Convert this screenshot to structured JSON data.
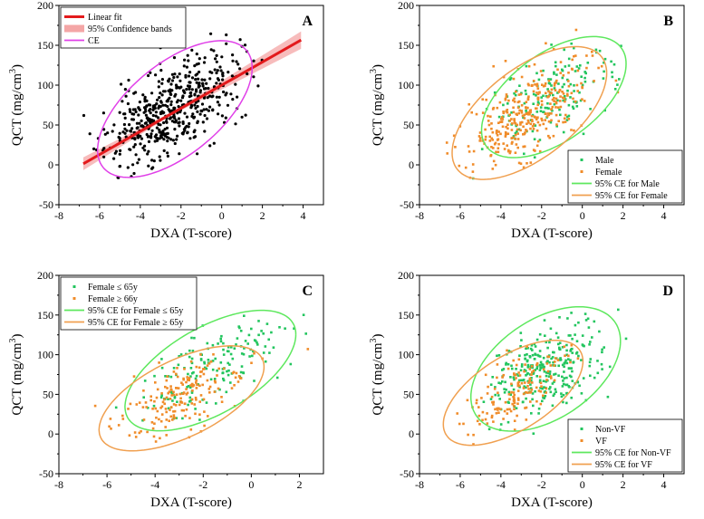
{
  "colors": {
    "black": "#000000",
    "red": "#e31a1c",
    "band": "#f4a6a6",
    "magenta": "#e040e8",
    "green": "#22c55e",
    "orange": "#f08c2a",
    "ellipse_green": "#5ee85e",
    "ellipse_orange": "#f0a050"
  },
  "chart_data": [
    {
      "panel": "A",
      "type": "scatter",
      "xlabel": "DXA (T-score)",
      "ylabel": "QCT (mg/cm",
      "ylabel_sup": "3",
      "ylabel_end": ")",
      "xlim": [
        -8,
        5
      ],
      "ylim": [
        -50,
        200
      ],
      "xticks": [
        -8,
        -6,
        -4,
        -2,
        0,
        2,
        4
      ],
      "yticks": [
        -50,
        0,
        50,
        100,
        150,
        200
      ],
      "legend": [
        "Linear fit",
        "95% Confidence bands",
        "CE"
      ],
      "fit": {
        "slope": 14.5,
        "intercept": 100,
        "x_range": [
          -6.8,
          3.9
        ]
      },
      "ellipses": [
        {
          "name": "CE",
          "cx": -2.3,
          "cy": 70,
          "sd_x": 1.55,
          "sd_y": 35,
          "r": 0.6,
          "color": "magenta"
        }
      ],
      "series": [
        {
          "name": "All",
          "color": "black",
          "n": 520,
          "mx": -2.5,
          "sx": 1.6,
          "my": 70,
          "sy": 35,
          "r": 0.6,
          "seed": 11
        }
      ]
    },
    {
      "panel": "B",
      "type": "scatter",
      "xlabel": "DXA (T-score)",
      "ylabel": "QCT (mg/cm",
      "ylabel_sup": "3",
      "ylabel_end": ")",
      "xlim": [
        -8,
        5
      ],
      "ylim": [
        -50,
        200
      ],
      "xticks": [
        -8,
        -6,
        -4,
        -2,
        0,
        2,
        4
      ],
      "yticks": [
        -50,
        0,
        50,
        100,
        150,
        200
      ],
      "legend": [
        "Male",
        "Female",
        "95% CE for Male",
        "95% CE for Female"
      ],
      "ellipses": [
        {
          "name": "95% CE for Male",
          "cx": -1.4,
          "cy": 85,
          "sd_x": 1.45,
          "sd_y": 31,
          "r": 0.55,
          "color": "ellipse_green"
        },
        {
          "name": "95% CE for Female",
          "cx": -2.6,
          "cy": 65,
          "sd_x": 1.55,
          "sd_y": 34,
          "r": 0.6,
          "color": "ellipse_orange"
        }
      ],
      "series": [
        {
          "name": "Male",
          "color": "green",
          "n": 160,
          "mx": -1.5,
          "sx": 1.5,
          "my": 85,
          "sy": 31,
          "r": 0.55,
          "seed": 23
        },
        {
          "name": "Female",
          "color": "orange",
          "n": 340,
          "mx": -2.6,
          "sx": 1.5,
          "my": 65,
          "sy": 33,
          "r": 0.6,
          "seed": 37
        }
      ]
    },
    {
      "panel": "C",
      "type": "scatter",
      "xlabel": "DXA (T-score)",
      "ylabel": "QCT (mg/cm",
      "ylabel_sup": "3",
      "ylabel_end": ")",
      "xlim": [
        -8,
        3
      ],
      "ylim": [
        -50,
        200
      ],
      "xticks": [
        -8,
        -6,
        -4,
        -2,
        0,
        2
      ],
      "yticks": [
        -50,
        0,
        50,
        100,
        150,
        200
      ],
      "legend": [
        "Female ≤ 65y",
        "Female ≥ 66y",
        "95% CE for Female ≤ 65y",
        "95% CE for Female ≥ 65y"
      ],
      "ellipses": [
        {
          "name": "95% CE for Female ≤ 65y",
          "cx": -1.7,
          "cy": 80,
          "sd_x": 1.45,
          "sd_y": 31,
          "r": 0.6,
          "color": "ellipse_green"
        },
        {
          "name": "95% CE for Female ≥ 65y",
          "cx": -2.9,
          "cy": 45,
          "sd_x": 1.4,
          "sd_y": 27,
          "r": 0.6,
          "color": "ellipse_orange"
        }
      ],
      "series": [
        {
          "name": "Female ≤ 65y",
          "color": "green",
          "n": 170,
          "mx": -1.8,
          "sx": 1.4,
          "my": 80,
          "sy": 30,
          "r": 0.6,
          "seed": 51
        },
        {
          "name": "Female ≥ 66y",
          "color": "orange",
          "n": 190,
          "mx": -3.0,
          "sx": 1.3,
          "my": 47,
          "sy": 26,
          "r": 0.6,
          "seed": 67
        }
      ]
    },
    {
      "panel": "D",
      "type": "scatter",
      "xlabel": "DXA (T-score)",
      "ylabel": "QCT (mg/cm",
      "ylabel_sup": "3",
      "ylabel_end": ")",
      "xlim": [
        -8,
        5
      ],
      "ylim": [
        -50,
        200
      ],
      "xticks": [
        -8,
        -6,
        -4,
        -2,
        0,
        2,
        4
      ],
      "yticks": [
        -50,
        0,
        50,
        100,
        150,
        200
      ],
      "legend": [
        "Non-VF",
        "VF",
        "95% CE for Non-VF",
        "95% CE for VF"
      ],
      "ellipses": [
        {
          "name": "95% CE for Non-VF",
          "cx": -1.8,
          "cy": 82,
          "sd_x": 1.5,
          "sd_y": 32,
          "r": 0.45,
          "color": "ellipse_green"
        },
        {
          "name": "95% CE for VF",
          "cx": -3.4,
          "cy": 52,
          "sd_x": 1.4,
          "sd_y": 27,
          "r": 0.6,
          "color": "ellipse_orange"
        }
      ],
      "series": [
        {
          "name": "Non-VF",
          "color": "green",
          "n": 300,
          "mx": -1.9,
          "sx": 1.4,
          "my": 82,
          "sy": 30,
          "r": 0.45,
          "seed": 83
        },
        {
          "name": "VF",
          "color": "orange",
          "n": 150,
          "mx": -3.4,
          "sx": 1.3,
          "my": 52,
          "sy": 26,
          "r": 0.6,
          "seed": 97
        }
      ]
    }
  ]
}
